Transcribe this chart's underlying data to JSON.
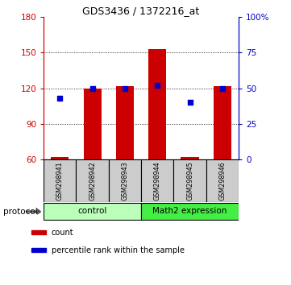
{
  "title": "GDS3436 / 1372216_at",
  "samples": [
    "GSM298941",
    "GSM298942",
    "GSM298943",
    "GSM298944",
    "GSM298945",
    "GSM298946"
  ],
  "count_values": [
    62,
    120,
    122,
    153,
    62,
    122
  ],
  "percentile_values": [
    43,
    50,
    50,
    52,
    40,
    50
  ],
  "ylim_left": [
    60,
    180
  ],
  "ylim_right": [
    0,
    100
  ],
  "yticks_left": [
    60,
    90,
    120,
    150,
    180
  ],
  "yticks_right": [
    0,
    25,
    50,
    75,
    100
  ],
  "ytick_labels_right": [
    "0",
    "25",
    "50",
    "75",
    "100%"
  ],
  "bar_color": "#cc0000",
  "dot_color": "#0000cc",
  "bar_bottom": 60,
  "groups": [
    {
      "label": "control",
      "start": 0,
      "end": 3,
      "color": "#bbffbb"
    },
    {
      "label": "Math2 expression",
      "start": 3,
      "end": 6,
      "color": "#44ee44"
    }
  ],
  "protocol_label": "protocol",
  "legend_items": [
    {
      "color": "#cc0000",
      "label": "count"
    },
    {
      "color": "#0000cc",
      "label": "percentile rank within the sample"
    }
  ],
  "grid_yticks": [
    90,
    120,
    150
  ],
  "sample_box_color": "#cccccc",
  "bar_width": 0.55
}
